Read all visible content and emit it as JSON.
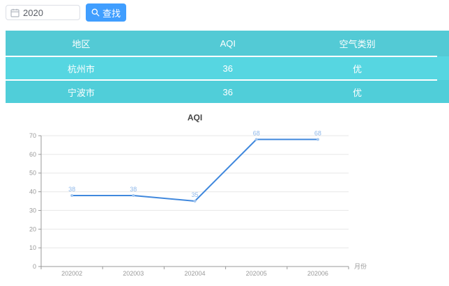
{
  "search": {
    "input_value": "2020",
    "input_placeholder": "",
    "button_label": "查找"
  },
  "table": {
    "headers": [
      "地区",
      "AQI",
      "空气类别"
    ],
    "rows": [
      {
        "region": "杭州市",
        "aqi": "36",
        "category": "优"
      },
      {
        "region": "宁波市",
        "aqi": "36",
        "category": "优"
      }
    ]
  },
  "chart_data": {
    "type": "line",
    "title": "AQI",
    "categories": [
      "202002",
      "202003",
      "202004",
      "202005",
      "202006"
    ],
    "values": [
      38,
      38,
      35,
      68,
      68
    ],
    "xlabel": "月份",
    "ylabel": "",
    "ylim": [
      0,
      70
    ],
    "ytick_step": 10,
    "grid": true,
    "legend": "none",
    "colors": {
      "line": "#4088dd",
      "marker": "#a2c6f0",
      "data_label": "#8fb8ea",
      "axis": "#999999",
      "tick_label": "#999999",
      "gridline": "#e7e7e7",
      "title": "#464646"
    }
  },
  "colors": {
    "button_primary": "#409eff",
    "table_header": "#53cad5",
    "table_row_odd": "#56d6e1",
    "table_row_even": "#50ced9",
    "table_text": "#ffffff",
    "input_border": "#dcdfe6"
  }
}
